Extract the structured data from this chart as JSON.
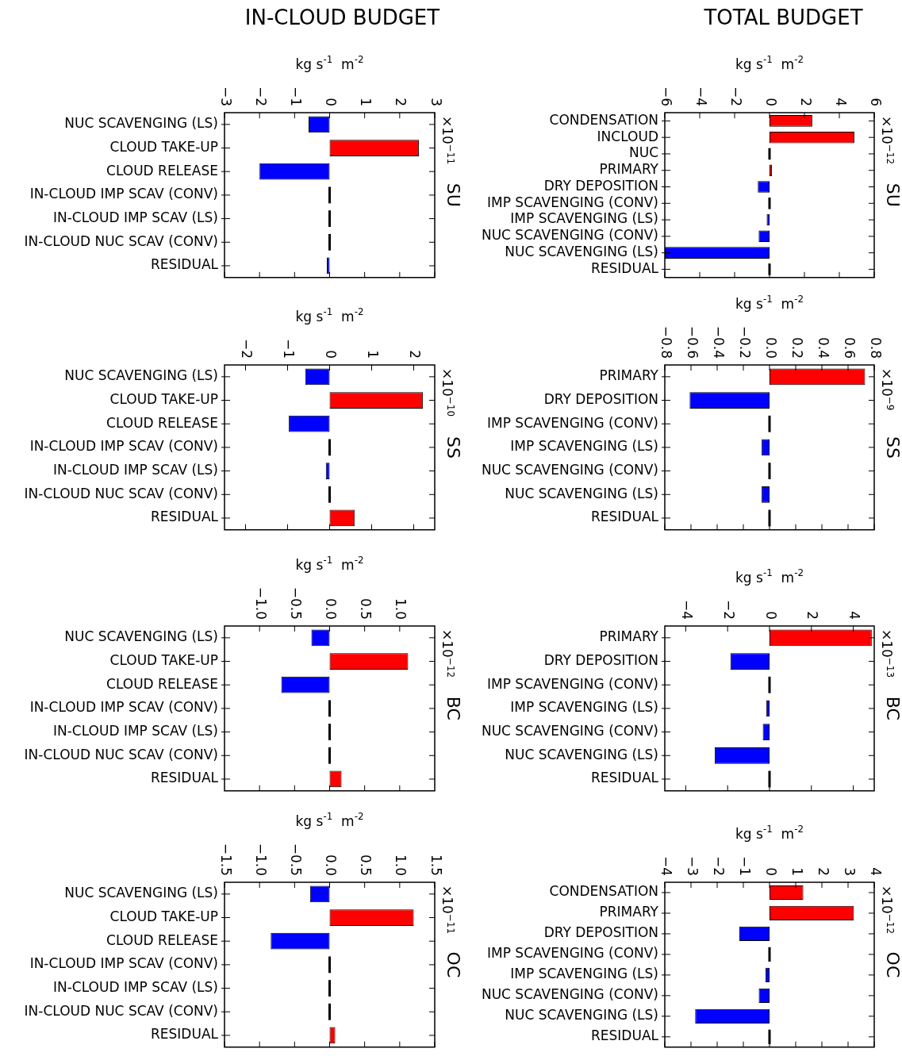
{
  "chart_data": [
    {
      "type": "bar",
      "orientation": "horizontal",
      "title": "IN-CLOUD BUDGET",
      "xlabel": "kg s$^{-1}$  m$^{-2}$",
      "y2label": "SU",
      "annotations": [
        "×10$^{−11}$"
      ],
      "categories": [
        "NUC SCAVENGING (LS)",
        "CLOUD TAKE-UP",
        "CLOUD RELEASE",
        "IN-CLOUD IMP SCAV (CONV)",
        "IN-CLOUD IMP SCAV (LS)",
        "IN-CLOUD NUC SCAV (CONV)",
        "RESIDUAL"
      ],
      "values": [
        -0.6,
        2.55,
        -2.0,
        0,
        0,
        0,
        -0.08
      ],
      "colors": [
        "#0000ff",
        "#ff0000",
        "#0000ff",
        "#000000",
        "#000000",
        "#000000",
        "#0000ff"
      ],
      "xlim": [
        -3,
        3
      ],
      "xticks": [
        -3,
        -2,
        -1,
        0,
        1,
        2,
        3
      ],
      "grid": false
    },
    {
      "type": "bar",
      "orientation": "horizontal",
      "title": "TOTAL BUDGET",
      "xlabel": "kg s$^{-1}$  m$^{-2}$",
      "y2label": "SU",
      "annotations": [
        "×10$^{−12}$"
      ],
      "categories": [
        "CONDENSATION",
        "INCLOUD",
        "NUC",
        "PRIMARY",
        "DRY DEPOSITION",
        "IMP SCAVENGING (CONV)",
        "IMP SCAVENGING (LS)",
        "NUC SCAVENGING (CONV)",
        "NUC SCAVENGING (LS)",
        "RESIDUAL"
      ],
      "values": [
        2.45,
        4.86,
        0,
        0.14,
        -0.67,
        0,
        -0.16,
        -0.62,
        -6.0,
        0
      ],
      "colors": [
        "#ff0000",
        "#ff0000",
        "#000000",
        "#ff0000",
        "#0000ff",
        "#000000",
        "#0000ff",
        "#0000ff",
        "#0000ff",
        "#000000"
      ],
      "xlim": [
        -6,
        6
      ],
      "xticks": [
        -6,
        -4,
        -2,
        0,
        2,
        4,
        6
      ],
      "grid": false
    },
    {
      "type": "bar",
      "orientation": "horizontal",
      "xlabel": "kg s$^{-1}$  m$^{-2}$",
      "y2label": "SS",
      "annotations": [
        "×10$^{−10}$"
      ],
      "categories": [
        "NUC SCAVENGING (LS)",
        "CLOUD TAKE-UP",
        "CLOUD RELEASE",
        "IN-CLOUD IMP SCAV (CONV)",
        "IN-CLOUD IMP SCAV (LS)",
        "IN-CLOUD NUC SCAV (CONV)",
        "RESIDUAL"
      ],
      "values": [
        -0.58,
        2.22,
        -0.97,
        0,
        -0.09,
        0,
        0.6
      ],
      "colors": [
        "#0000ff",
        "#ff0000",
        "#0000ff",
        "#000000",
        "#0000ff",
        "#000000",
        "#ff0000"
      ],
      "xlim": [
        -2.5,
        2.5
      ],
      "xticks": [
        -2,
        -1,
        0,
        1,
        2
      ],
      "grid": false
    },
    {
      "type": "bar",
      "orientation": "horizontal",
      "xlabel": "kg s$^{-1}$  m$^{-2}$",
      "y2label": "SS",
      "annotations": [
        "×10$^{−9}$"
      ],
      "categories": [
        "PRIMARY",
        "DRY DEPOSITION",
        "IMP SCAVENGING (CONV)",
        "IMP SCAVENGING (LS)",
        "NUC SCAVENGING (CONV)",
        "NUC SCAVENGING (LS)",
        "RESIDUAL"
      ],
      "values": [
        0.73,
        -0.61,
        0,
        -0.06,
        0,
        -0.06,
        0
      ],
      "colors": [
        "#ff0000",
        "#0000ff",
        "#000000",
        "#0000ff",
        "#000000",
        "#0000ff",
        "#000000"
      ],
      "xlim": [
        -0.8,
        0.8
      ],
      "xticks": [
        {
          "value": -0.8,
          "label": "−0.8"
        },
        {
          "value": -0.6,
          "label": "−0.6"
        },
        {
          "value": -0.4,
          "label": "−0.4"
        },
        {
          "value": -0.2,
          "label": "−0.2"
        },
        {
          "value": 0,
          "label": "0.0"
        },
        {
          "value": 0.2,
          "label": "0.2"
        },
        {
          "value": 0.4,
          "label": "0.4"
        },
        {
          "value": 0.6,
          "label": "0.6"
        },
        {
          "value": 0.8,
          "label": "0.8"
        }
      ],
      "grid": false
    },
    {
      "type": "bar",
      "orientation": "horizontal",
      "xlabel": "kg s$^{-1}$  m$^{-2}$",
      "y2label": "BC",
      "annotations": [
        "×10$^{−12}$"
      ],
      "categories": [
        "NUC SCAVENGING (LS)",
        "CLOUD TAKE-UP",
        "CLOUD RELEASE",
        "IN-CLOUD IMP SCAV (CONV)",
        "IN-CLOUD IMP SCAV (LS)",
        "IN-CLOUD NUC SCAV (CONV)",
        "RESIDUAL"
      ],
      "values": [
        -0.26,
        1.12,
        -0.69,
        0,
        0,
        0,
        0.17
      ],
      "colors": [
        "#0000ff",
        "#ff0000",
        "#0000ff",
        "#000000",
        "#000000",
        "#000000",
        "#ff0000"
      ],
      "xlim": [
        -1.5,
        1.5
      ],
      "xticks": [
        {
          "value": -1,
          "label": "−1.0"
        },
        {
          "value": -0.5,
          "label": "−0.5"
        },
        {
          "value": 0,
          "label": "0.0"
        },
        {
          "value": 0.5,
          "label": "0.5"
        },
        {
          "value": 1,
          "label": "1.0"
        }
      ],
      "grid": false
    },
    {
      "type": "bar",
      "orientation": "horizontal",
      "xlabel": "kg s$^{-1}$  m$^{-2}$",
      "y2label": "BC",
      "annotations": [
        "×10$^{−13}$"
      ],
      "categories": [
        "PRIMARY",
        "DRY DEPOSITION",
        "IMP SCAVENGING (CONV)",
        "IMP SCAVENGING (LS)",
        "NUC SCAVENGING (CONV)",
        "NUC SCAVENGING (LS)",
        "RESIDUAL"
      ],
      "values": [
        4.88,
        -1.87,
        0,
        -0.16,
        -0.32,
        -2.62,
        0
      ],
      "colors": [
        "#ff0000",
        "#0000ff",
        "#000000",
        "#0000ff",
        "#0000ff",
        "#0000ff",
        "#000000"
      ],
      "xlim": [
        -5,
        5
      ],
      "xticks": [
        -4,
        -2,
        0,
        2,
        4
      ],
      "grid": false
    },
    {
      "type": "bar",
      "orientation": "horizontal",
      "xlabel": "kg s$^{-1}$  m$^{-2}$",
      "y2label": "OC",
      "annotations": [
        "×10$^{−11}$"
      ],
      "categories": [
        "NUC SCAVENGING (LS)",
        "CLOUD TAKE-UP",
        "CLOUD RELEASE",
        "IN-CLOUD IMP SCAV (CONV)",
        "IN-CLOUD IMP SCAV (LS)",
        "IN-CLOUD NUC SCAV (CONV)",
        "RESIDUAL"
      ],
      "values": [
        -0.28,
        1.2,
        -0.84,
        0,
        0,
        0,
        0.08
      ],
      "colors": [
        "#0000ff",
        "#ff0000",
        "#0000ff",
        "#000000",
        "#000000",
        "#000000",
        "#ff0000"
      ],
      "xlim": [
        -1.5,
        1.5
      ],
      "xticks": [
        {
          "value": -1.5,
          "label": "−1.5"
        },
        {
          "value": -1,
          "label": "−1.0"
        },
        {
          "value": -0.5,
          "label": "−0.5"
        },
        {
          "value": 0,
          "label": "0.0"
        },
        {
          "value": 0.5,
          "label": "0.5"
        },
        {
          "value": 1,
          "label": "1.0"
        },
        {
          "value": 1.5,
          "label": "1.5"
        }
      ],
      "grid": false
    },
    {
      "type": "bar",
      "orientation": "horizontal",
      "xlabel": "kg s$^{-1}$  m$^{-2}$",
      "y2label": "OC",
      "annotations": [
        "×10$^{−12}$"
      ],
      "categories": [
        "CONDENSATION",
        "PRIMARY",
        "DRY DEPOSITION",
        "IMP SCAVENGING (CONV)",
        "IMP SCAVENGING (LS)",
        "NUC SCAVENGING (CONV)",
        "NUC SCAVENGING (LS)",
        "RESIDUAL"
      ],
      "values": [
        1.29,
        3.22,
        -1.15,
        0,
        -0.15,
        -0.41,
        -2.84,
        0
      ],
      "colors": [
        "#ff0000",
        "#ff0000",
        "#0000ff",
        "#000000",
        "#0000ff",
        "#0000ff",
        "#0000ff",
        "#000000"
      ],
      "xlim": [
        -4,
        4
      ],
      "xticks": [
        -4,
        -3,
        -2,
        -1,
        0,
        1,
        2,
        3,
        4
      ],
      "grid": false
    }
  ]
}
